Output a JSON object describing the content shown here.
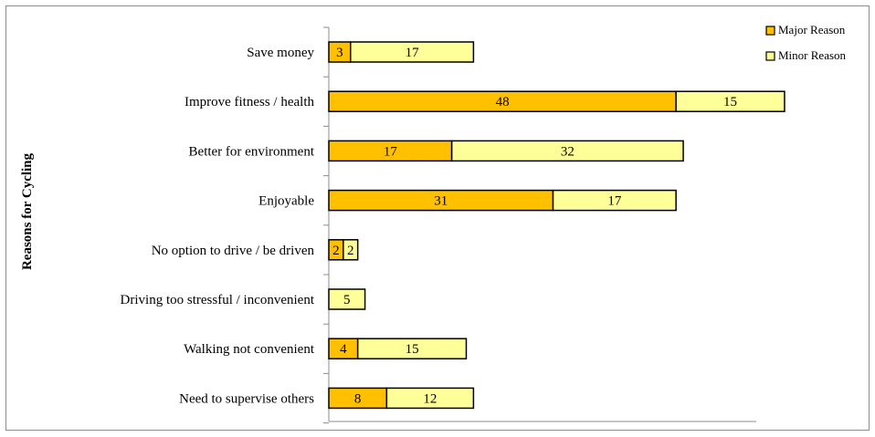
{
  "chart_data": {
    "type": "bar",
    "orientation": "horizontal",
    "stacked": true,
    "ylabel": "Reasons for Cycling",
    "categories": [
      "Save money",
      "Improve fitness / health",
      "Better for environment",
      "Enjoyable",
      "No option to drive / be driven",
      "Driving too stressful / inconvenient",
      "Walking not convenient",
      "Need to supervise others"
    ],
    "series": [
      {
        "name": "Major Reason",
        "color": "#ffc000",
        "values": [
          3,
          48,
          17,
          31,
          2,
          0,
          4,
          8
        ]
      },
      {
        "name": "Minor Reason",
        "color": "#ffff99",
        "values": [
          17,
          15,
          32,
          17,
          2,
          5,
          15,
          12
        ]
      }
    ],
    "xlim": [
      0,
      80
    ],
    "grid": false,
    "legend_position": "top-right"
  }
}
